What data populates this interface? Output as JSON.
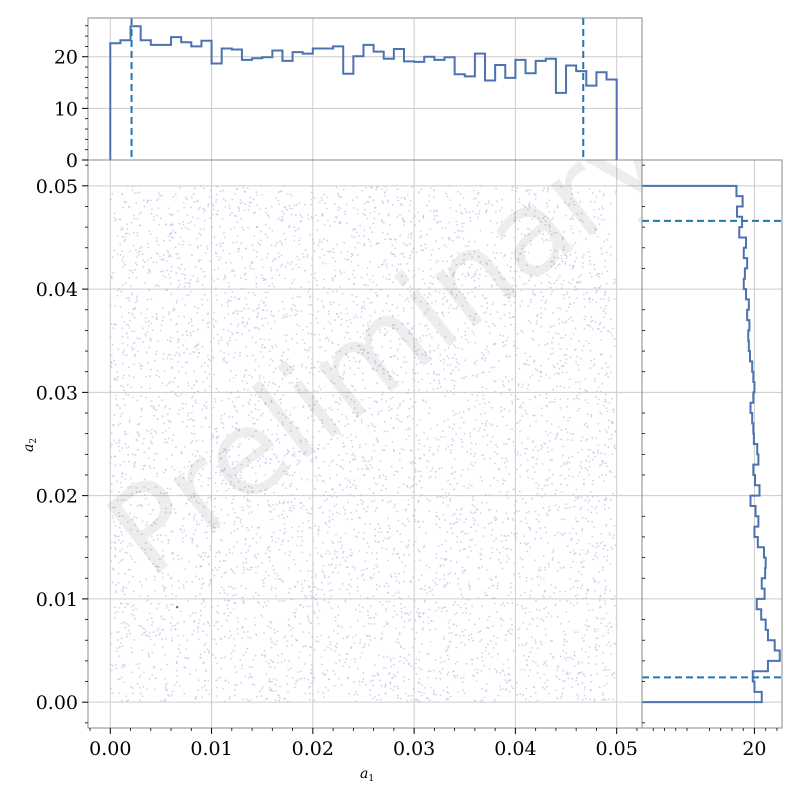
{
  "watermark": "Preliminary",
  "colors": {
    "hist": "#4c72b0",
    "dashed": "#1f77b4",
    "scatter": "#b8c6e4",
    "grid": "#cccccc",
    "frame": "#888888"
  },
  "chart_data": [
    {
      "name": "joint",
      "type": "scatter",
      "xlabel": "a",
      "xlabel_sub": "1",
      "ylabel": "a",
      "ylabel_sub": "2",
      "xlim": [
        -0.0022,
        0.0525
      ],
      "ylim": [
        -0.0025,
        0.0525
      ],
      "xticks": [
        0.0,
        0.01,
        0.02,
        0.03,
        0.04,
        0.05
      ],
      "xtick_labels": [
        "0.00",
        "0.01",
        "0.02",
        "0.03",
        "0.04",
        "0.05"
      ],
      "yticks": [
        0.0,
        0.01,
        0.02,
        0.03,
        0.04,
        0.05
      ],
      "ytick_labels": [
        "0.00",
        "0.01",
        "0.02",
        "0.03",
        "0.04",
        "0.05"
      ],
      "grid": true,
      "point_cloud": {
        "n": 6000,
        "x_range": [
          0.0,
          0.05
        ],
        "y_range": [
          0.0,
          0.05
        ],
        "distribution": "uniform"
      },
      "highlight_point": [
        0.0066,
        0.0092
      ]
    },
    {
      "name": "marginal-a1",
      "type": "histogram",
      "bin_edges_range": [
        0.0,
        0.05
      ],
      "counts": [
        22.6,
        23.2,
        25.9,
        23.2,
        22.3,
        22.3,
        23.8,
        22.8,
        22.0,
        23.1,
        18.7,
        21.6,
        21.4,
        19.4,
        19.7,
        19.9,
        21.2,
        19.2,
        20.9,
        20.6,
        21.6,
        21.6,
        22.0,
        16.7,
        20.1,
        22.3,
        21.0,
        19.6,
        21.5,
        19.1,
        19.0,
        20.0,
        19.4,
        19.9,
        16.6,
        16.2,
        20.6,
        15.4,
        18.4,
        15.9,
        19.4,
        16.8,
        19.2,
        19.6,
        13.0,
        18.3,
        17.2,
        14.4,
        17.0,
        15.6
      ],
      "ylim": [
        0,
        27.5
      ],
      "yticks": [
        0,
        10,
        20
      ],
      "ytick_labels": [
        "0",
        "10",
        "20"
      ],
      "quantile_lines": [
        0.0021,
        0.0467
      ]
    },
    {
      "name": "marginal-a2",
      "type": "histogram",
      "orientation": "horizontal",
      "bin_edges_range": [
        0.0,
        0.05
      ],
      "counts": [
        21.3,
        20.0,
        19.7,
        22.4,
        24.5,
        23.6,
        22.4,
        22.0,
        21.2,
        20.4,
        21.8,
        21.3,
        21.9,
        22.0,
        21.7,
        20.6,
        20.0,
        20.7,
        20.2,
        19.3,
        20.9,
        20.1,
        19.8,
        20.7,
        20.5,
        19.9,
        19.8,
        19.6,
        19.3,
        19.8,
        20.0,
        19.8,
        19.6,
        19.2,
        19.0,
        18.9,
        19.1,
        18.7,
        19.0,
        18.5,
        18.1,
        18.3,
        18.7,
        18.1,
        18.5,
        17.3,
        17.8,
        16.9,
        17.9,
        16.8
      ],
      "xlim": [
        0,
        24.9
      ],
      "xticks": [
        20
      ],
      "xtick_labels": [
        "20"
      ],
      "quantile_lines": [
        0.0024,
        0.0466
      ]
    }
  ]
}
